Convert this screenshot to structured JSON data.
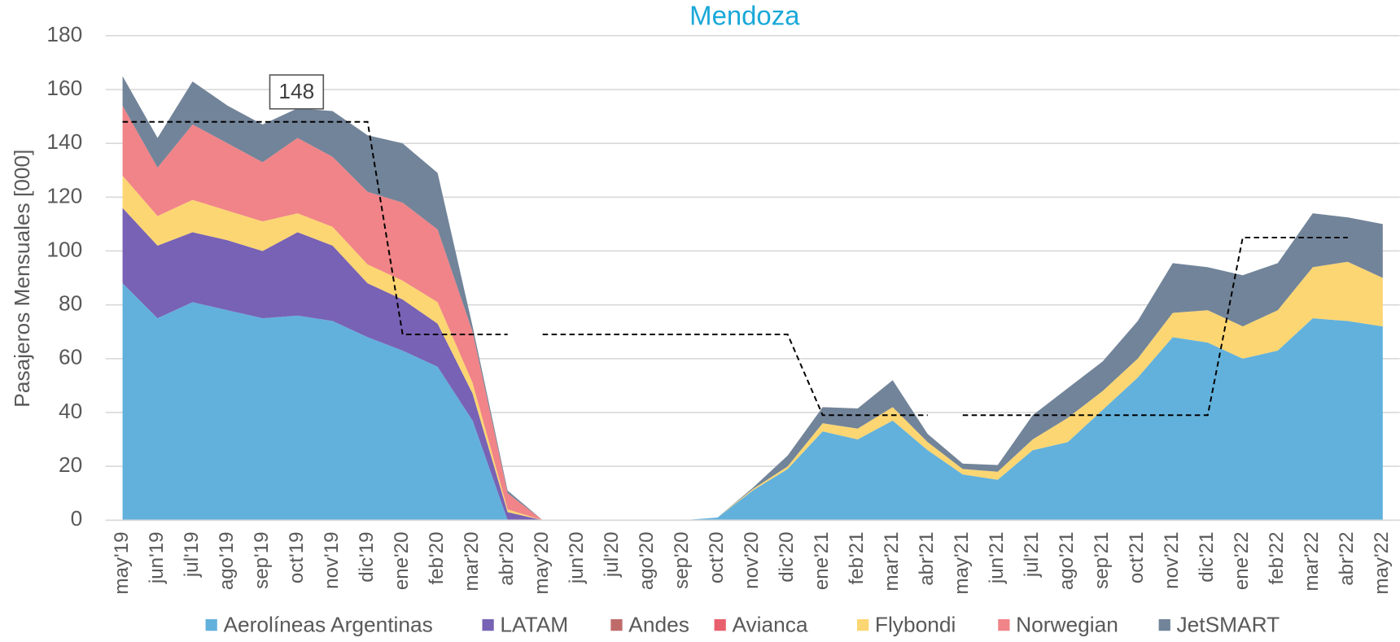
{
  "chart_data": {
    "type": "stacked_area",
    "title": "Mendoza",
    "y_label": "Pasajeros Mensuales [000]",
    "categories": [
      "may'19",
      "jun'19",
      "jul'19",
      "ago'19",
      "sep'19",
      "oct'19",
      "nov'19",
      "dic'19",
      "ene'20",
      "feb'20",
      "mar'20",
      "abr'20",
      "may'20",
      "jun'20",
      "jul'20",
      "ago'20",
      "sep'20",
      "oct'20",
      "nov'20",
      "dic'20",
      "ene'21",
      "feb'21",
      "mar'21",
      "abr'21",
      "may'21",
      "jun'21",
      "jul'21",
      "ago'21",
      "sep'21",
      "oct'21",
      "nov'21",
      "dic'21",
      "ene'22",
      "feb'22",
      "mar'22",
      "abr'22",
      "may'22"
    ],
    "series": [
      {
        "name": "Aerolíneas Argentinas",
        "color": "#62b1dc",
        "values": [
          88,
          75,
          81,
          78,
          75,
          76,
          74,
          68,
          63,
          57,
          37,
          0,
          0,
          0,
          0,
          0,
          0,
          1,
          11,
          19,
          33,
          30,
          37,
          26,
          17,
          15,
          26,
          29,
          41,
          53,
          68,
          66,
          60,
          63,
          75,
          74,
          72
        ]
      },
      {
        "name": "LATAM",
        "color": "#7862b5",
        "values": [
          28,
          27,
          26,
          26,
          25,
          31,
          28,
          20,
          19,
          16,
          10,
          3,
          0,
          0,
          0,
          0,
          0,
          0,
          0,
          0,
          0,
          0,
          0,
          0,
          0,
          0,
          0,
          0,
          0,
          0,
          0,
          0,
          0,
          0,
          0,
          0,
          0
        ]
      },
      {
        "name": "Andes",
        "color": "#c06b6b",
        "values": [
          0,
          0,
          0,
          0,
          0,
          0,
          0,
          0,
          0,
          0,
          0,
          0,
          0,
          0,
          0,
          0,
          0,
          0,
          0,
          0,
          0,
          0,
          0,
          0,
          0,
          0,
          0,
          0,
          0,
          0,
          0,
          0,
          0,
          0,
          0,
          0,
          0
        ]
      },
      {
        "name": "Avianca",
        "color": "#e8606e",
        "values": [
          0,
          0,
          0,
          0,
          0,
          0,
          0,
          0,
          0,
          0,
          0,
          0,
          0,
          0,
          0,
          0,
          0,
          0,
          0,
          0,
          0,
          0,
          0,
          0,
          0,
          0,
          0,
          0,
          0,
          0,
          0,
          0,
          0,
          0,
          0,
          0,
          0
        ]
      },
      {
        "name": "Flybondi",
        "color": "#fcd672",
        "values": [
          12,
          11,
          12,
          11,
          11,
          7,
          7,
          7,
          7,
          8,
          4,
          1,
          0,
          0,
          0,
          0,
          0,
          0,
          0.5,
          1,
          3,
          4,
          5,
          3,
          2,
          3,
          4,
          9,
          7,
          7,
          9,
          12,
          12,
          15,
          19,
          22,
          18
        ]
      },
      {
        "name": "Norwegian",
        "color": "#f08488",
        "values": [
          26,
          18,
          28,
          25,
          22,
          28,
          26,
          27,
          29,
          27,
          19,
          6,
          0,
          0,
          0,
          0,
          0,
          0,
          0,
          0,
          0,
          0,
          0,
          0,
          0,
          0,
          0,
          0,
          0,
          0,
          0,
          0,
          0,
          0,
          0,
          0,
          0
        ]
      },
      {
        "name": "JetSMART",
        "color": "#728499",
        "values": [
          11,
          11,
          16,
          14,
          14,
          11,
          17,
          21,
          22,
          21,
          2,
          1,
          0,
          0,
          0,
          0,
          0,
          0,
          0.5,
          4,
          6,
          7.5,
          10,
          3,
          2,
          2.5,
          9,
          11,
          11,
          14,
          18.5,
          16,
          19,
          17.5,
          20,
          16.5,
          20
        ]
      }
    ],
    "reference_lines": [
      {
        "values": [
          148,
          148,
          148,
          148,
          148,
          148,
          148,
          148,
          69,
          69,
          69,
          69,
          null,
          null,
          null,
          null,
          null,
          null,
          null,
          null,
          null,
          null,
          null,
          null,
          null,
          null,
          null,
          null,
          null,
          null,
          null,
          null,
          null,
          null,
          null,
          null,
          null
        ]
      },
      {
        "values": [
          null,
          null,
          null,
          null,
          null,
          null,
          null,
          null,
          null,
          null,
          null,
          null,
          69,
          69,
          69,
          69,
          69,
          69,
          69,
          69,
          39,
          39,
          39,
          39,
          null,
          null,
          null,
          null,
          null,
          null,
          null,
          null,
          null,
          null,
          null,
          null,
          null
        ]
      },
      {
        "values": [
          null,
          null,
          null,
          null,
          null,
          null,
          null,
          null,
          null,
          null,
          null,
          null,
          null,
          null,
          null,
          null,
          null,
          null,
          null,
          null,
          null,
          null,
          null,
          null,
          39,
          39,
          39,
          39,
          39,
          39,
          39,
          39,
          105,
          105,
          105,
          105,
          null
        ]
      }
    ],
    "ylim": [
      0,
      180
    ],
    "yticks": [
      0,
      20,
      40,
      60,
      80,
      100,
      120,
      140,
      160,
      180
    ],
    "grid": true,
    "legend": "bottom"
  }
}
